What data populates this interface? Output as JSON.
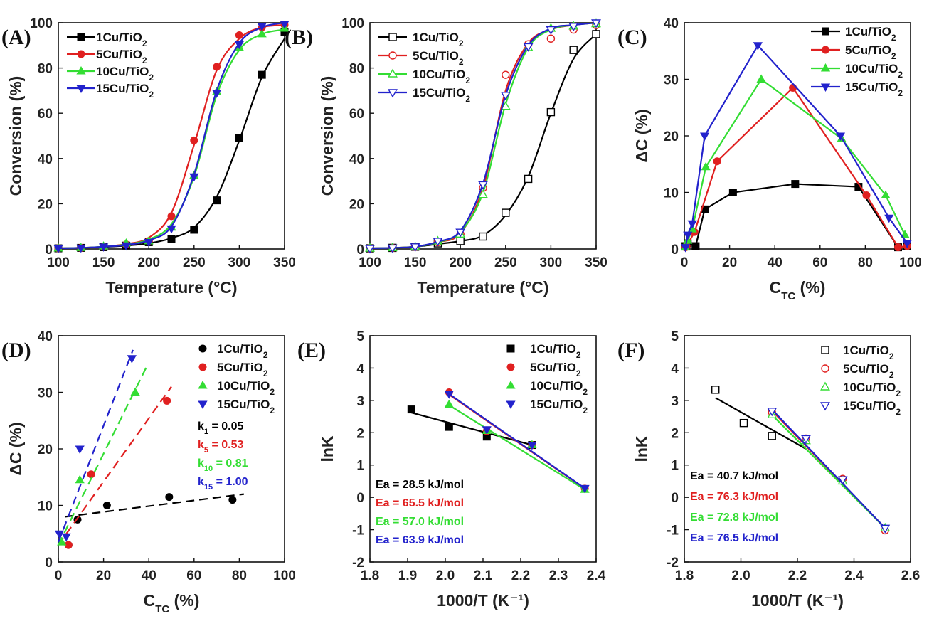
{
  "chart_data": [
    {
      "panel": "(A)",
      "type": "line",
      "xlabel": "Temperature (°C)",
      "ylabel": "Conversion (%)",
      "xlim": [
        100,
        350
      ],
      "ylim": [
        0,
        100
      ],
      "xticks": [
        100,
        150,
        200,
        250,
        300,
        350
      ],
      "yticks": [
        0,
        20,
        40,
        60,
        80,
        100
      ],
      "legend_position": "top-left",
      "series": [
        {
          "name": "1Cu/TiO2",
          "color": "#000000",
          "marker": "square",
          "filled": true,
          "x": [
            100,
            125,
            150,
            175,
            200,
            225,
            250,
            275,
            300,
            325,
            350
          ],
          "y": [
            0.3,
            0.5,
            0.8,
            1.5,
            3,
            4.5,
            8.5,
            21.5,
            49,
            77,
            96
          ],
          "fit_x": [
            100,
            125,
            150,
            175,
            200,
            225,
            250,
            275,
            300,
            325,
            350
          ],
          "fit_y": [
            0.3,
            0.5,
            0.9,
            1.5,
            2.5,
            4.8,
            9.5,
            23,
            48,
            76,
            93
          ]
        },
        {
          "name": "5Cu/TiO2",
          "color": "#e02020",
          "marker": "circle",
          "filled": true,
          "x": [
            100,
            125,
            150,
            175,
            200,
            225,
            250,
            275,
            300,
            325,
            350
          ],
          "y": [
            0.3,
            0.5,
            1,
            2,
            3.5,
            14.5,
            48,
            80.5,
            94.5,
            98,
            99
          ],
          "fit_x": [
            100,
            125,
            150,
            175,
            200,
            225,
            250,
            275,
            300,
            325,
            350
          ],
          "fit_y": [
            0.3,
            0.5,
            1,
            2.2,
            5,
            16,
            46,
            79,
            93,
            98,
            99
          ]
        },
        {
          "name": "10Cu/TiO2",
          "color": "#33dd33",
          "marker": "triangle-up",
          "filled": true,
          "x": [
            100,
            125,
            150,
            175,
            200,
            225,
            250,
            275,
            300,
            325,
            350
          ],
          "y": [
            0.3,
            0.5,
            1.2,
            2.5,
            3.5,
            9.5,
            32.5,
            69.5,
            89,
            95,
            97.5
          ],
          "fit_x": [
            100,
            125,
            150,
            175,
            200,
            225,
            250,
            275,
            300,
            325,
            350
          ],
          "fit_y": [
            0.3,
            0.5,
            1,
            2,
            4.2,
            11,
            32,
            68,
            88,
            95,
            97
          ]
        },
        {
          "name": "15Cu/TiO2",
          "color": "#2222cc",
          "marker": "triangle-down",
          "filled": true,
          "x": [
            100,
            125,
            150,
            175,
            200,
            225,
            250,
            275,
            300,
            325,
            350
          ],
          "y": [
            0.3,
            0.5,
            1,
            1.5,
            3,
            9,
            32,
            69,
            90.5,
            98.5,
            99.5
          ],
          "fit_x": [
            100,
            125,
            150,
            175,
            200,
            225,
            250,
            275,
            300,
            325,
            350
          ],
          "fit_y": [
            0.3,
            0.5,
            1,
            1.8,
            3.8,
            10,
            33,
            70,
            91,
            98,
            100
          ]
        }
      ]
    },
    {
      "panel": "(B)",
      "type": "line",
      "xlabel": "Temperature (°C)",
      "ylabel": "Conversion (%)",
      "xlim": [
        100,
        350
      ],
      "ylim": [
        0,
        100
      ],
      "xticks": [
        100,
        150,
        200,
        250,
        300,
        350
      ],
      "yticks": [
        0,
        20,
        40,
        60,
        80,
        100
      ],
      "legend_position": "top-left",
      "series": [
        {
          "name": "1Cu/TiO2",
          "color": "#000000",
          "marker": "square",
          "filled": false,
          "x": [
            100,
            125,
            150,
            175,
            200,
            225,
            250,
            275,
            300,
            325,
            350
          ],
          "y": [
            0.3,
            0.5,
            1,
            2.5,
            3.5,
            5.5,
            16,
            31,
            60.5,
            88,
            95
          ],
          "fit_x": [
            100,
            125,
            150,
            175,
            200,
            225,
            250,
            275,
            300,
            325,
            350
          ],
          "fit_y": [
            0.3,
            0.5,
            1,
            2.2,
            3.5,
            6,
            15,
            32,
            60,
            84,
            95
          ]
        },
        {
          "name": "5Cu/TiO2",
          "color": "#e02020",
          "marker": "circle",
          "filled": false,
          "x": [
            100,
            125,
            150,
            175,
            200,
            225,
            250,
            275,
            300,
            325,
            350
          ],
          "y": [
            0.3,
            0.5,
            1,
            3,
            6.5,
            27,
            77,
            90.5,
            93,
            97,
            99
          ],
          "fit_x": [
            100,
            125,
            150,
            175,
            200,
            225,
            250,
            275,
            300,
            325,
            350
          ],
          "fit_y": [
            0.3,
            0.5,
            1,
            3,
            7,
            27,
            70,
            91,
            97,
            99,
            100
          ]
        },
        {
          "name": "10Cu/TiO2",
          "color": "#33dd33",
          "marker": "triangle-up",
          "filled": false,
          "x": [
            100,
            125,
            150,
            175,
            200,
            225,
            250,
            275,
            300,
            325,
            350
          ],
          "y": [
            0.3,
            0.5,
            1,
            3.5,
            6.5,
            24,
            63,
            89,
            97.5,
            98.5,
            99.5
          ],
          "fit_x": [
            100,
            125,
            150,
            175,
            200,
            225,
            250,
            275,
            300,
            325,
            350
          ],
          "fit_y": [
            0.3,
            0.5,
            1,
            3,
            7.5,
            25,
            64,
            89,
            97,
            99,
            100
          ]
        },
        {
          "name": "15Cu/TiO2",
          "color": "#2222cc",
          "marker": "triangle-down",
          "filled": false,
          "x": [
            100,
            125,
            150,
            175,
            200,
            225,
            250,
            275,
            300,
            325,
            350
          ],
          "y": [
            0.3,
            0.5,
            1,
            3.5,
            7.5,
            28.5,
            68,
            89.5,
            97,
            98.5,
            100
          ],
          "fit_x": [
            100,
            125,
            150,
            175,
            200,
            225,
            250,
            275,
            300,
            325,
            350
          ],
          "fit_y": [
            0.3,
            0.5,
            1,
            3.2,
            8,
            29,
            68,
            90,
            97.5,
            99,
            100
          ]
        }
      ]
    },
    {
      "panel": "(C)",
      "type": "line",
      "xlabel": "C_TC (%)",
      "ylabel": "ΔC (%)",
      "xlim": [
        0,
        100
      ],
      "ylim": [
        0,
        40
      ],
      "xticks": [
        0,
        20,
        40,
        60,
        80,
        100
      ],
      "yticks": [
        0,
        10,
        20,
        30,
        40
      ],
      "legend_position": "top-right",
      "series": [
        {
          "name": "1Cu/TiO2",
          "color": "#000000",
          "marker": "square",
          "filled": true,
          "x": [
            0.5,
            1.5,
            5,
            9,
            21.5,
            49,
            77,
            94.5,
            98.5
          ],
          "y": [
            0.5,
            1,
            0.5,
            7,
            10,
            11.5,
            11,
            0.3,
            0.5
          ]
        },
        {
          "name": "5Cu/TiO2",
          "color": "#e02020",
          "marker": "circle",
          "filled": true,
          "x": [
            0.5,
            1,
            4.5,
            14.5,
            48,
            80.5,
            94.5,
            98.5
          ],
          "y": [
            0.3,
            0.5,
            3,
            15.5,
            28.5,
            9.5,
            0.3,
            0.5
          ]
        },
        {
          "name": "10Cu/TiO2",
          "color": "#33dd33",
          "marker": "triangle-up",
          "filled": true,
          "x": [
            0.5,
            1.5,
            3.5,
            9.5,
            34,
            69.5,
            89,
            97.5
          ],
          "y": [
            0.3,
            1.5,
            3.5,
            14.5,
            30,
            19.5,
            9.5,
            2.5
          ]
        },
        {
          "name": "15Cu/TiO2",
          "color": "#2222cc",
          "marker": "triangle-down",
          "filled": true,
          "x": [
            0.5,
            1.5,
            3.5,
            9,
            32.5,
            69,
            90.5,
            98.5
          ],
          "y": [
            0.3,
            2.5,
            4.5,
            20,
            36,
            20,
            5.5,
            1
          ]
        }
      ]
    },
    {
      "panel": "(D)",
      "type": "scatter",
      "xlabel": "C_TC (%)",
      "ylabel": "ΔC (%)",
      "xlim": [
        0,
        100
      ],
      "ylim": [
        0,
        40
      ],
      "xticks": [
        0,
        20,
        40,
        60,
        80,
        100
      ],
      "yticks": [
        0,
        10,
        20,
        30,
        40
      ],
      "legend_position": "top-right",
      "series": [
        {
          "name": "1Cu/TiO2",
          "color": "#000000",
          "marker": "circle",
          "filled": true,
          "x": [
            4.5,
            8.5,
            21.5,
            49,
            77
          ],
          "y": [
            3,
            7.5,
            10,
            11.5,
            11
          ],
          "fit_x": [
            3,
            82
          ],
          "fit_y": [
            8,
            12
          ]
        },
        {
          "name": "5Cu/TiO2",
          "color": "#e02020",
          "marker": "circle",
          "filled": true,
          "x": [
            4.5,
            14.5,
            48
          ],
          "y": [
            3,
            15.5,
            28.5
          ],
          "fit_x": [
            0,
            50
          ],
          "fit_y": [
            3,
            31
          ]
        },
        {
          "name": "10Cu/TiO2",
          "color": "#33dd33",
          "marker": "triangle-up",
          "filled": true,
          "x": [
            1.5,
            9.5,
            34
          ],
          "y": [
            3.5,
            14.5,
            30
          ],
          "fit_x": [
            0,
            39
          ],
          "fit_y": [
            3,
            34.5
          ]
        },
        {
          "name": "15Cu/TiO2",
          "color": "#2222cc",
          "marker": "triangle-down",
          "filled": true,
          "x": [
            0.5,
            3.5,
            9.5,
            32.5
          ],
          "y": [
            5,
            4.5,
            20,
            36
          ],
          "fit_x": [
            0,
            33
          ],
          "fit_y": [
            3.5,
            37.5
          ]
        }
      ],
      "annotations": [
        "k1 = 0.05",
        "k5 = 0.53",
        "k10 = 0.81",
        "k15 = 1.00"
      ]
    },
    {
      "panel": "(E)",
      "type": "scatter",
      "xlabel": "1000/T (K⁻¹)",
      "ylabel": "lnK",
      "xlim": [
        1.8,
        2.4
      ],
      "ylim": [
        -2,
        5
      ],
      "xticks": [
        1.8,
        1.9,
        2.0,
        2.1,
        2.2,
        2.3,
        2.4
      ],
      "yticks": [
        -2,
        -1,
        0,
        1,
        2,
        3,
        4,
        5
      ],
      "legend_position": "top-right",
      "series": [
        {
          "name": "1Cu/TiO2",
          "color": "#000000",
          "marker": "square",
          "filled": true,
          "x": [
            1.91,
            2.01,
            2.11,
            2.23
          ],
          "y": [
            2.72,
            2.18,
            1.88,
            1.62
          ],
          "fit_x": [
            1.91,
            2.23
          ],
          "fit_y": [
            2.62,
            1.62
          ]
        },
        {
          "name": "5Cu/TiO2",
          "color": "#e02020",
          "marker": "circle",
          "filled": true,
          "x": [
            2.01,
            2.11,
            2.23,
            2.37
          ],
          "y": [
            3.25,
            2.05,
            1.62,
            0.27
          ],
          "fit_x": [
            2.01,
            2.37
          ],
          "fit_y": [
            3.18,
            0.27
          ]
        },
        {
          "name": "10Cu/TiO2",
          "color": "#33dd33",
          "marker": "triangle-up",
          "filled": true,
          "x": [
            2.01,
            2.11,
            2.23,
            2.37
          ],
          "y": [
            2.87,
            2.06,
            1.62,
            0.24
          ],
          "fit_x": [
            2.01,
            2.37
          ],
          "fit_y": [
            2.85,
            0.24
          ]
        },
        {
          "name": "15Cu/TiO2",
          "color": "#2222cc",
          "marker": "triangle-down",
          "filled": true,
          "x": [
            2.01,
            2.11,
            2.23,
            2.37
          ],
          "y": [
            3.2,
            2.1,
            1.62,
            0.28
          ],
          "fit_x": [
            2.01,
            2.37
          ],
          "fit_y": [
            3.2,
            0.28
          ]
        }
      ],
      "annotations": [
        "Ea = 28.5 kJ/mol",
        "Ea = 65.5 kJ/mol",
        "Ea = 57.0 kJ/mol",
        "Ea = 63.9 kJ/mol"
      ]
    },
    {
      "panel": "(F)",
      "type": "scatter",
      "xlabel": "1000/T (K⁻¹)",
      "ylabel": "lnK",
      "xlim": [
        1.8,
        2.6
      ],
      "ylim": [
        -2,
        5
      ],
      "xticks": [
        1.8,
        2.0,
        2.2,
        2.4,
        2.6
      ],
      "yticks": [
        -2,
        -1,
        0,
        1,
        2,
        3,
        4,
        5
      ],
      "legend_position": "top-right",
      "series": [
        {
          "name": "1Cu/TiO2",
          "color": "#000000",
          "marker": "square",
          "filled": false,
          "x": [
            1.91,
            2.01,
            2.11
          ],
          "y": [
            3.33,
            2.3,
            1.9
          ],
          "fit_x": [
            1.91,
            2.23
          ],
          "fit_y": [
            3.08,
            1.5
          ]
        },
        {
          "name": "5Cu/TiO2",
          "color": "#e02020",
          "marker": "circle",
          "filled": false,
          "x": [
            2.11,
            2.23,
            2.36,
            2.51
          ],
          "y": [
            2.63,
            1.82,
            0.57,
            -1.02
          ],
          "fit_x": [
            2.11,
            2.51
          ],
          "fit_y": [
            2.68,
            -0.95
          ]
        },
        {
          "name": "10Cu/TiO2",
          "color": "#33dd33",
          "marker": "triangle-up",
          "filled": false,
          "x": [
            2.11,
            2.23,
            2.36,
            2.51
          ],
          "y": [
            2.55,
            1.75,
            0.5,
            -0.95
          ],
          "fit_x": [
            2.11,
            2.51
          ],
          "fit_y": [
            2.55,
            -0.95
          ]
        },
        {
          "name": "15Cu/TiO2",
          "color": "#2222cc",
          "marker": "triangle-down",
          "filled": false,
          "x": [
            2.11,
            2.23,
            2.36,
            2.51
          ],
          "y": [
            2.67,
            1.82,
            0.55,
            -0.95
          ],
          "fit_x": [
            2.11,
            2.51
          ],
          "fit_y": [
            2.72,
            -0.95
          ]
        }
      ],
      "annotations": [
        "Ea = 40.7 kJ/mol",
        "Ea = 76.3 kJ/mol",
        "Ea = 72.8 kJ/mol",
        "Ea = 76.5 kJ/mol"
      ]
    }
  ],
  "styles": {
    "annotation_colors": [
      "#000000",
      "#e02020",
      "#33dd33",
      "#2222cc"
    ],
    "dash_fits_panel": "(D)"
  }
}
